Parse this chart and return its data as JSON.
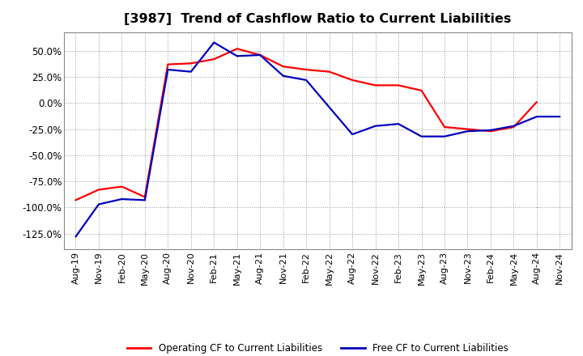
{
  "title": "[3987]  Trend of Cashflow Ratio to Current Liabilities",
  "title_fontsize": 11.5,
  "legend_labels": [
    "Operating CF to Current Liabilities",
    "Free CF to Current Liabilities"
  ],
  "legend_colors": [
    "#ff0000",
    "#0000bb"
  ],
  "x_labels": [
    "Aug-19",
    "Nov-19",
    "Feb-20",
    "May-20",
    "Aug-20",
    "Nov-20",
    "Feb-21",
    "May-21",
    "Aug-21",
    "Nov-21",
    "Feb-22",
    "May-22",
    "Aug-22",
    "Nov-22",
    "Feb-23",
    "May-23",
    "Aug-23",
    "Nov-23",
    "Feb-24",
    "May-24",
    "Aug-24",
    "Nov-24"
  ],
  "operating_cf": [
    -93,
    -83,
    -80,
    -90,
    37,
    38,
    42,
    52,
    46,
    35,
    32,
    30,
    22,
    17,
    17,
    12,
    -23,
    -25,
    -27,
    -23,
    1,
    null
  ],
  "free_cf": [
    -128,
    -97,
    -92,
    -93,
    32,
    30,
    58,
    45,
    46,
    26,
    22,
    null,
    -30,
    -22,
    -20,
    -32,
    -32,
    -27,
    -26,
    -22,
    -13,
    -13
  ],
  "ylim": [
    -140,
    68
  ],
  "yticks": [
    -125,
    -100,
    -75,
    -50,
    -25,
    0,
    25,
    50
  ],
  "background_color": "#ffffff",
  "grid_color": "#999999",
  "line_width": 1.6
}
